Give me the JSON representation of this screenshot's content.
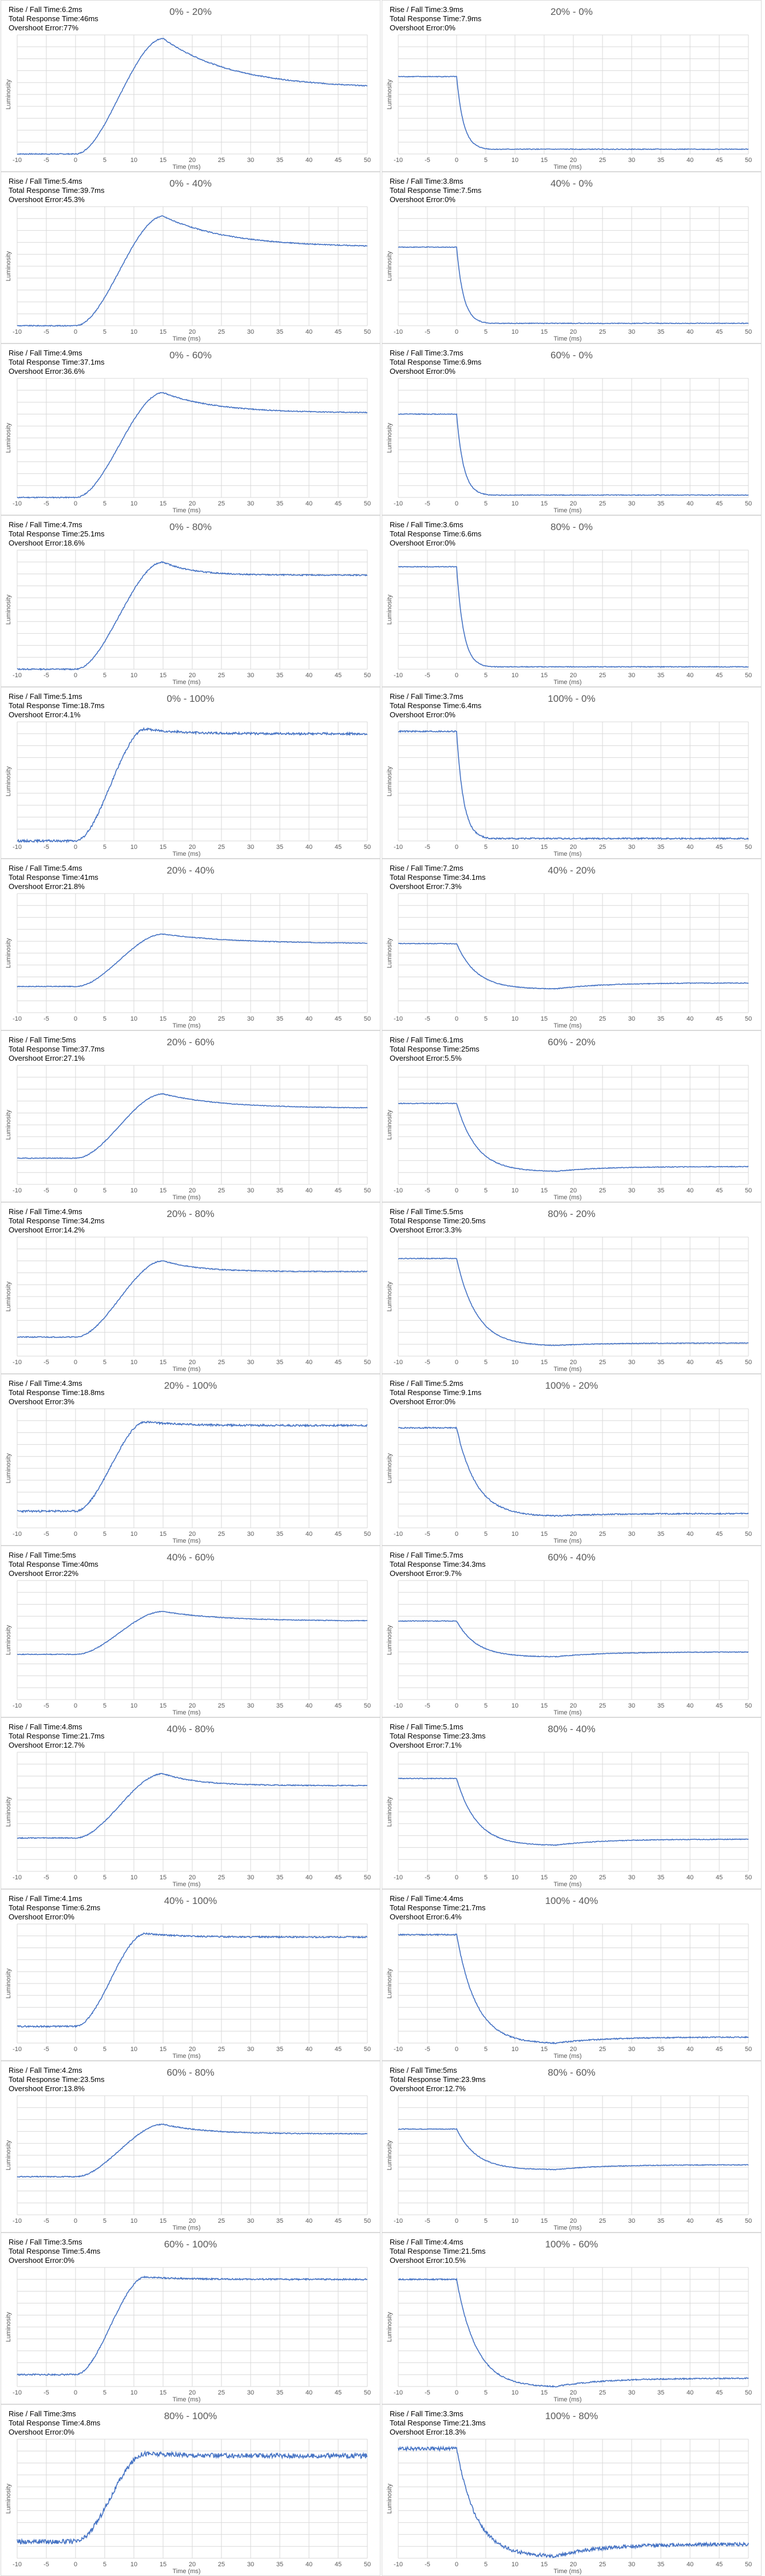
{
  "labels": {
    "y_axis": "Luminosity",
    "x_axis": "Time (ms)"
  },
  "stat_labels": {
    "rise_fall": "Rise / Fall Time:",
    "total": "Total Response Time:",
    "overshoot": "Overshoot Error:"
  },
  "colors": {
    "line": "#4472c4",
    "grid": "#d9d9d9",
    "axis_text": "#595959",
    "border": "#d9d9d9"
  },
  "chart_data": [
    {
      "type": "line",
      "title": "0% - 20%",
      "rise_fall": "6.2ms",
      "total": "46ms",
      "overshoot": "77%",
      "dir": "rise",
      "start": 0.0,
      "end": 0.55,
      "peak": 0.97,
      "peak_t": 15,
      "settle_tau": 12,
      "noise": 0.004,
      "xlim": [
        -10,
        50
      ],
      "xticks": [
        -10,
        -5,
        0,
        5,
        10,
        15,
        20,
        25,
        30,
        35,
        40,
        45,
        50
      ],
      "xlabel": "Time (ms)",
      "ylabel": "Luminosity"
    },
    {
      "type": "line",
      "title": "20% - 0%",
      "rise_fall": "3.9ms",
      "total": "7.9ms",
      "overshoot": "0%",
      "dir": "fall",
      "start": 0.65,
      "end": 0.04,
      "peak": 0.04,
      "peak_t": 0,
      "settle_tau": 6,
      "noise": 0.003,
      "xlim": [
        -10,
        50
      ],
      "xticks": [
        -10,
        -5,
        0,
        5,
        10,
        15,
        20,
        25,
        30,
        35,
        40,
        45,
        50
      ],
      "xlabel": "Time (ms)",
      "ylabel": "Luminosity"
    },
    {
      "type": "line",
      "title": "0% - 40%",
      "rise_fall": "5.4ms",
      "total": "39.7ms",
      "overshoot": "45.3%",
      "dir": "rise",
      "start": 0.0,
      "end": 0.66,
      "peak": 0.92,
      "peak_t": 15,
      "settle_tau": 11,
      "noise": 0.004,
      "xlim": [
        -10,
        50
      ],
      "xticks": [
        -10,
        -5,
        0,
        5,
        10,
        15,
        20,
        25,
        30,
        35,
        40,
        45,
        50
      ],
      "xlabel": "Time (ms)",
      "ylabel": "Luminosity"
    },
    {
      "type": "line",
      "title": "40% - 0%",
      "rise_fall": "3.8ms",
      "total": "7.5ms",
      "overshoot": "0%",
      "dir": "fall",
      "start": 0.66,
      "end": 0.02,
      "peak": 0.02,
      "peak_t": 0,
      "settle_tau": 6,
      "noise": 0.003,
      "xlim": [
        -10,
        50
      ],
      "xticks": [
        -10,
        -5,
        0,
        5,
        10,
        15,
        20,
        25,
        30,
        35,
        40,
        45,
        50
      ],
      "xlabel": "Time (ms)",
      "ylabel": "Luminosity"
    },
    {
      "type": "line",
      "title": "0% - 60%",
      "rise_fall": "4.9ms",
      "total": "37.1ms",
      "overshoot": "36.6%",
      "dir": "rise",
      "start": 0.0,
      "end": 0.71,
      "peak": 0.88,
      "peak_t": 15,
      "settle_tau": 9,
      "noise": 0.004,
      "xlim": [
        -10,
        50
      ],
      "xticks": [
        -10,
        -5,
        0,
        5,
        10,
        15,
        20,
        25,
        30,
        35,
        40,
        45,
        50
      ],
      "xlabel": "Time (ms)",
      "ylabel": "Luminosity"
    },
    {
      "type": "line",
      "title": "60% - 0%",
      "rise_fall": "3.7ms",
      "total": "6.9ms",
      "overshoot": "0%",
      "dir": "fall",
      "start": 0.7,
      "end": 0.02,
      "peak": 0.02,
      "peak_t": 0,
      "settle_tau": 6,
      "noise": 0.003,
      "xlim": [
        -10,
        50
      ],
      "xticks": [
        -10,
        -5,
        0,
        5,
        10,
        15,
        20,
        25,
        30,
        35,
        40,
        45,
        50
      ],
      "xlabel": "Time (ms)",
      "ylabel": "Luminosity"
    },
    {
      "type": "line",
      "title": "0% - 80%",
      "rise_fall": "4.7ms",
      "total": "25.1ms",
      "overshoot": "18.6%",
      "dir": "rise",
      "start": 0.0,
      "end": 0.79,
      "peak": 0.9,
      "peak_t": 15,
      "settle_tau": 5,
      "noise": 0.005,
      "xlim": [
        -10,
        50
      ],
      "xticks": [
        -10,
        -5,
        0,
        5,
        10,
        15,
        20,
        25,
        30,
        35,
        40,
        45,
        50
      ],
      "xlabel": "Time (ms)",
      "ylabel": "Luminosity"
    },
    {
      "type": "line",
      "title": "80% - 0%",
      "rise_fall": "3.6ms",
      "total": "6.6ms",
      "overshoot": "0%",
      "dir": "fall",
      "start": 0.86,
      "end": 0.02,
      "peak": 0.02,
      "peak_t": 0,
      "settle_tau": 6,
      "noise": 0.003,
      "xlim": [
        -10,
        50
      ],
      "xticks": [
        -10,
        -5,
        0,
        5,
        10,
        15,
        20,
        25,
        30,
        35,
        40,
        45,
        50
      ],
      "xlabel": "Time (ms)",
      "ylabel": "Luminosity"
    },
    {
      "type": "line",
      "title": "0% - 100%",
      "rise_fall": "5.1ms",
      "total": "18.7ms",
      "overshoot": "4.1%",
      "dir": "rise",
      "start": 0.0,
      "end": 0.9,
      "peak": 0.94,
      "peak_t": 12,
      "settle_tau": 6,
      "noise": 0.009,
      "xlim": [
        -10,
        50
      ],
      "xticks": [
        -10,
        -5,
        0,
        5,
        10,
        15,
        20,
        25,
        30,
        35,
        40,
        45,
        50
      ],
      "xlabel": "Time (ms)",
      "ylabel": "Luminosity"
    },
    {
      "type": "line",
      "title": "100% - 0%",
      "rise_fall": "3.7ms",
      "total": "6.4ms",
      "overshoot": "0%",
      "dir": "fall",
      "start": 0.92,
      "end": 0.02,
      "peak": 0.02,
      "peak_t": 0,
      "settle_tau": 6,
      "noise": 0.006,
      "xlim": [
        -10,
        50
      ],
      "xticks": [
        -10,
        -5,
        0,
        5,
        10,
        15,
        20,
        25,
        30,
        35,
        40,
        45,
        50
      ],
      "xlabel": "Time (ms)",
      "ylabel": "Luminosity"
    },
    {
      "type": "line",
      "title": "20% - 40%",
      "rise_fall": "5.4ms",
      "total": "41ms",
      "overshoot": "21.8%",
      "dir": "rise",
      "start": 0.22,
      "end": 0.58,
      "peak": 0.66,
      "peak_t": 15,
      "settle_tau": 12,
      "noise": 0.003,
      "xlim": [
        -10,
        50
      ],
      "xticks": [
        -10,
        -5,
        0,
        5,
        10,
        15,
        20,
        25,
        30,
        35,
        40,
        45,
        50
      ],
      "xlabel": "Time (ms)",
      "ylabel": "Luminosity"
    },
    {
      "type": "line",
      "title": "40% - 20%",
      "rise_fall": "7.2ms",
      "total": "34.1ms",
      "overshoot": "7.3%",
      "dir": "fall",
      "start": 0.58,
      "end": 0.25,
      "peak": 0.2,
      "peak_t": 17,
      "settle_tau": 8,
      "noise": 0.003,
      "xlim": [
        -10,
        50
      ],
      "xticks": [
        -10,
        -5,
        0,
        5,
        10,
        15,
        20,
        25,
        30,
        35,
        40,
        45,
        50
      ],
      "xlabel": "Time (ms)",
      "ylabel": "Luminosity"
    },
    {
      "type": "line",
      "title": "20% - 60%",
      "rise_fall": "5ms",
      "total": "37.7ms",
      "overshoot": "27.1%",
      "dir": "rise",
      "start": 0.22,
      "end": 0.64,
      "peak": 0.76,
      "peak_t": 15,
      "settle_tau": 10,
      "noise": 0.003,
      "xlim": [
        -10,
        50
      ],
      "xticks": [
        -10,
        -5,
        0,
        5,
        10,
        15,
        20,
        25,
        30,
        35,
        40,
        45,
        50
      ],
      "xlabel": "Time (ms)",
      "ylabel": "Luminosity"
    },
    {
      "type": "line",
      "title": "60% - 20%",
      "rise_fall": "6.1ms",
      "total": "25ms",
      "overshoot": "5.5%",
      "dir": "fall",
      "start": 0.68,
      "end": 0.15,
      "peak": 0.11,
      "peak_t": 17,
      "settle_tau": 8,
      "noise": 0.003,
      "xlim": [
        -10,
        50
      ],
      "xticks": [
        -10,
        -5,
        0,
        5,
        10,
        15,
        20,
        25,
        30,
        35,
        40,
        45,
        50
      ],
      "xlabel": "Time (ms)",
      "ylabel": "Luminosity"
    },
    {
      "type": "line",
      "title": "20% - 80%",
      "rise_fall": "4.9ms",
      "total": "34.2ms",
      "overshoot": "14.2%",
      "dir": "rise",
      "start": 0.16,
      "end": 0.71,
      "peak": 0.8,
      "peak_t": 15,
      "settle_tau": 6,
      "noise": 0.004,
      "xlim": [
        -10,
        50
      ],
      "xticks": [
        -10,
        -5,
        0,
        5,
        10,
        15,
        20,
        25,
        30,
        35,
        40,
        45,
        50
      ],
      "xlabel": "Time (ms)",
      "ylabel": "Luminosity"
    },
    {
      "type": "line",
      "title": "80% - 20%",
      "rise_fall": "5.5ms",
      "total": "20.5ms",
      "overshoot": "3.3%",
      "dir": "fall",
      "start": 0.82,
      "end": 0.11,
      "peak": 0.09,
      "peak_t": 17,
      "settle_tau": 8,
      "noise": 0.003,
      "xlim": [
        -10,
        50
      ],
      "xticks": [
        -10,
        -5,
        0,
        5,
        10,
        15,
        20,
        25,
        30,
        35,
        40,
        45,
        50
      ],
      "xlabel": "Time (ms)",
      "ylabel": "Luminosity"
    },
    {
      "type": "line",
      "title": "20% - 100%",
      "rise_fall": "4.3ms",
      "total": "18.8ms",
      "overshoot": "3%",
      "dir": "rise",
      "start": 0.14,
      "end": 0.86,
      "peak": 0.89,
      "peak_t": 12,
      "settle_tau": 6,
      "noise": 0.008,
      "xlim": [
        -10,
        50
      ],
      "xticks": [
        -10,
        -5,
        0,
        5,
        10,
        15,
        20,
        25,
        30,
        35,
        40,
        45,
        50
      ],
      "xlabel": "Time (ms)",
      "ylabel": "Luminosity"
    },
    {
      "type": "line",
      "title": "100% - 20%",
      "rise_fall": "5.2ms",
      "total": "9.1ms",
      "overshoot": "0%",
      "dir": "fall",
      "start": 0.84,
      "end": 0.12,
      "peak": 0.1,
      "peak_t": 17,
      "settle_tau": 8,
      "noise": 0.005,
      "xlim": [
        -10,
        50
      ],
      "xticks": [
        -10,
        -5,
        0,
        5,
        10,
        15,
        20,
        25,
        30,
        35,
        40,
        45,
        50
      ],
      "xlabel": "Time (ms)",
      "ylabel": "Luminosity"
    },
    {
      "type": "line",
      "title": "40% - 60%",
      "rise_fall": "5ms",
      "total": "40ms",
      "overshoot": "22%",
      "dir": "rise",
      "start": 0.38,
      "end": 0.66,
      "peak": 0.74,
      "peak_t": 15,
      "settle_tau": 10,
      "noise": 0.003,
      "xlim": [
        -10,
        50
      ],
      "xticks": [
        -10,
        -5,
        0,
        5,
        10,
        15,
        20,
        25,
        30,
        35,
        40,
        45,
        50
      ],
      "xlabel": "Time (ms)",
      "ylabel": "Luminosity"
    },
    {
      "type": "line",
      "title": "60% - 40%",
      "rise_fall": "5.7ms",
      "total": "34.3ms",
      "overshoot": "9.7%",
      "dir": "fall",
      "start": 0.66,
      "end": 0.4,
      "peak": 0.36,
      "peak_t": 17,
      "settle_tau": 8,
      "noise": 0.003,
      "xlim": [
        -10,
        50
      ],
      "xticks": [
        -10,
        -5,
        0,
        5,
        10,
        15,
        20,
        25,
        30,
        35,
        40,
        45,
        50
      ],
      "xlabel": "Time (ms)",
      "ylabel": "Luminosity"
    },
    {
      "type": "line",
      "title": "40% - 80%",
      "rise_fall": "4.8ms",
      "total": "21.7ms",
      "overshoot": "12.7%",
      "dir": "rise",
      "start": 0.28,
      "end": 0.72,
      "peak": 0.82,
      "peak_t": 15,
      "settle_tau": 6,
      "noise": 0.004,
      "xlim": [
        -10,
        50
      ],
      "xticks": [
        -10,
        -5,
        0,
        5,
        10,
        15,
        20,
        25,
        30,
        35,
        40,
        45,
        50
      ],
      "xlabel": "Time (ms)",
      "ylabel": "Luminosity"
    },
    {
      "type": "line",
      "title": "80% - 40%",
      "rise_fall": "5.1ms",
      "total": "23.3ms",
      "overshoot": "7.1%",
      "dir": "fall",
      "start": 0.78,
      "end": 0.27,
      "peak": 0.22,
      "peak_t": 17,
      "settle_tau": 8,
      "noise": 0.003,
      "xlim": [
        -10,
        50
      ],
      "xticks": [
        -10,
        -5,
        0,
        5,
        10,
        15,
        20,
        25,
        30,
        35,
        40,
        45,
        50
      ],
      "xlabel": "Time (ms)",
      "ylabel": "Luminosity"
    },
    {
      "type": "line",
      "title": "40% - 100%",
      "rise_fall": "4.1ms",
      "total": "6.2ms",
      "overshoot": "0%",
      "dir": "rise",
      "start": 0.14,
      "end": 0.89,
      "peak": 0.92,
      "peak_t": 12,
      "settle_tau": 6,
      "noise": 0.006,
      "xlim": [
        -10,
        50
      ],
      "xticks": [
        -10,
        -5,
        0,
        5,
        10,
        15,
        20,
        25,
        30,
        35,
        40,
        45,
        50
      ],
      "xlabel": "Time (ms)",
      "ylabel": "Luminosity"
    },
    {
      "type": "line",
      "title": "100% - 40%",
      "rise_fall": "4.4ms",
      "total": "21.7ms",
      "overshoot": "6.4%",
      "dir": "fall",
      "start": 0.91,
      "end": 0.05,
      "peak": 0.0,
      "peak_t": 17,
      "settle_tau": 8,
      "noise": 0.005,
      "xlim": [
        -10,
        50
      ],
      "xticks": [
        -10,
        -5,
        0,
        5,
        10,
        15,
        20,
        25,
        30,
        35,
        40,
        45,
        50
      ],
      "xlabel": "Time (ms)",
      "ylabel": "Luminosity"
    },
    {
      "type": "line",
      "title": "60% - 80%",
      "rise_fall": "4.2ms",
      "total": "23.5ms",
      "overshoot": "13.8%",
      "dir": "rise",
      "start": 0.32,
      "end": 0.68,
      "peak": 0.76,
      "peak_t": 15,
      "settle_tau": 7,
      "noise": 0.004,
      "xlim": [
        -10,
        50
      ],
      "xticks": [
        -10,
        -5,
        0,
        5,
        10,
        15,
        20,
        25,
        30,
        35,
        40,
        45,
        50
      ],
      "xlabel": "Time (ms)",
      "ylabel": "Luminosity"
    },
    {
      "type": "line",
      "title": "80% - 60%",
      "rise_fall": "5ms",
      "total": "23.9ms",
      "overshoot": "12.7%",
      "dir": "fall",
      "start": 0.72,
      "end": 0.42,
      "peak": 0.38,
      "peak_t": 17,
      "settle_tau": 8,
      "noise": 0.003,
      "xlim": [
        -10,
        50
      ],
      "xticks": [
        -10,
        -5,
        0,
        5,
        10,
        15,
        20,
        25,
        30,
        35,
        40,
        45,
        50
      ],
      "xlabel": "Time (ms)",
      "ylabel": "Luminosity"
    },
    {
      "type": "line",
      "title": "60% - 100%",
      "rise_fall": "3.5ms",
      "total": "5.4ms",
      "overshoot": "0%",
      "dir": "rise",
      "start": 0.1,
      "end": 0.9,
      "peak": 0.92,
      "peak_t": 12,
      "settle_tau": 6,
      "noise": 0.006,
      "xlim": [
        -10,
        50
      ],
      "xticks": [
        -10,
        -5,
        0,
        5,
        10,
        15,
        20,
        25,
        30,
        35,
        40,
        45,
        50
      ],
      "xlabel": "Time (ms)",
      "ylabel": "Luminosity"
    },
    {
      "type": "line",
      "title": "100% - 60%",
      "rise_fall": "4.4ms",
      "total": "21.5ms",
      "overshoot": "10.5%",
      "dir": "fall",
      "start": 0.9,
      "end": 0.07,
      "peak": 0.0,
      "peak_t": 17,
      "settle_tau": 8,
      "noise": 0.005,
      "xlim": [
        -10,
        50
      ],
      "xticks": [
        -10,
        -5,
        0,
        5,
        10,
        15,
        20,
        25,
        30,
        35,
        40,
        45,
        50
      ],
      "xlabel": "Time (ms)",
      "ylabel": "Luminosity"
    },
    {
      "type": "line",
      "title": "80% - 100%",
      "rise_fall": "3ms",
      "total": "4.8ms",
      "overshoot": "0%",
      "dir": "rise",
      "start": 0.14,
      "end": 0.86,
      "peak": 0.88,
      "peak_t": 12,
      "settle_tau": 6,
      "noise": 0.02,
      "xlim": [
        -10,
        50
      ],
      "xticks": [
        -10,
        -5,
        0,
        5,
        10,
        15,
        20,
        25,
        30,
        35,
        40,
        45,
        50
      ],
      "xlabel": "Time (ms)",
      "ylabel": "Luminosity"
    },
    {
      "type": "line",
      "title": "100% - 80%",
      "rise_fall": "3.3ms",
      "total": "21.3ms",
      "overshoot": "18.3%",
      "dir": "fall",
      "start": 0.92,
      "end": 0.12,
      "peak": 0.02,
      "peak_t": 17,
      "settle_tau": 8,
      "noise": 0.015,
      "xlim": [
        -10,
        50
      ],
      "xticks": [
        -10,
        -5,
        0,
        5,
        10,
        15,
        20,
        25,
        30,
        35,
        40,
        45,
        50
      ],
      "xlabel": "Time (ms)",
      "ylabel": "Luminosity"
    }
  ]
}
